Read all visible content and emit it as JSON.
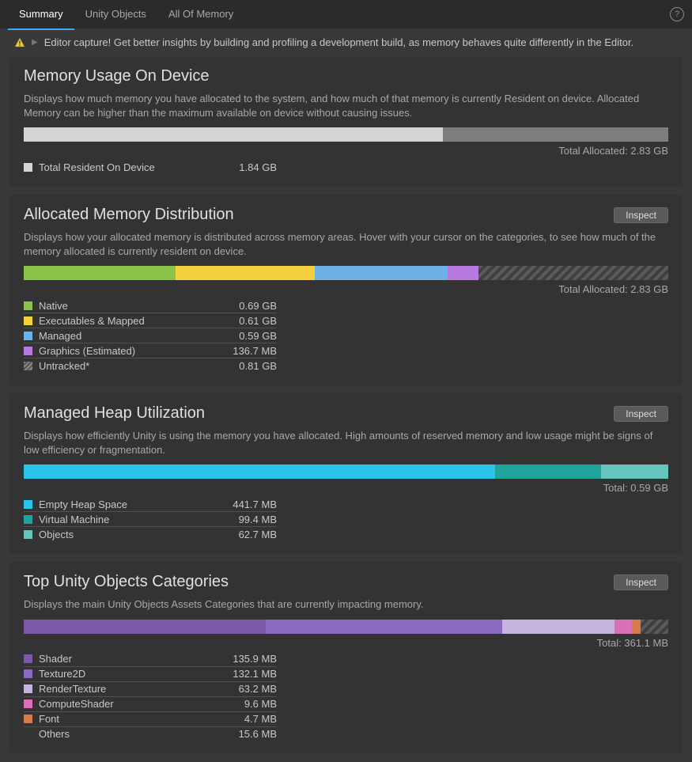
{
  "tabs": [
    {
      "label": "Summary",
      "active": true
    },
    {
      "label": "Unity Objects",
      "active": false
    },
    {
      "label": "All Of Memory",
      "active": false
    }
  ],
  "warning": "Editor capture! Get better insights by building and profiling a development build, as memory behaves quite differently in the Editor.",
  "inspect_label": "Inspect",
  "panels": {
    "device": {
      "title": "Memory Usage On Device",
      "desc": "Displays how much memory you have allocated to the system, and how much of that memory is currently Resident on device. Allocated Memory can be higher than the maximum available on device without causing issues.",
      "total_label": "Total Allocated: 2.83 GB",
      "bar": [
        {
          "color": "#d5d5d5",
          "pct": 65
        },
        {
          "color": "#7d7d7d",
          "pct": 35
        }
      ],
      "legend": [
        {
          "color": "#d5d5d5",
          "label": "Total Resident On Device",
          "val": "1.84 GB"
        }
      ]
    },
    "alloc": {
      "title": "Allocated Memory Distribution",
      "desc": "Displays how your allocated memory is distributed across memory areas. Hover with your cursor on the categories, to see how much of the memory allocated is currently resident on device.",
      "total_label": "Total Allocated: 2.83 GB",
      "bar": [
        {
          "color": "#8bc34a",
          "pct": 23.6
        },
        {
          "color": "#f4d03f",
          "pct": 21.5
        },
        {
          "color": "#6cb1e8",
          "pct": 20.7
        },
        {
          "color": "#b879e0",
          "pct": 4.7
        },
        {
          "hatched": true,
          "pct": 29.5
        }
      ],
      "legend": [
        {
          "color": "#8bc34a",
          "label": "Native",
          "val": "0.69 GB"
        },
        {
          "color": "#f4d03f",
          "label": "Executables & Mapped",
          "val": "0.61 GB"
        },
        {
          "color": "#6cb1e8",
          "label": "Managed",
          "val": "0.59 GB"
        },
        {
          "color": "#b879e0",
          "label": "Graphics (Estimated)",
          "val": "136.7 MB"
        },
        {
          "hatched": true,
          "label": "Untracked*",
          "val": "0.81 GB"
        }
      ]
    },
    "heap": {
      "title": "Managed Heap Utilization",
      "desc": "Displays how efficiently Unity is using the memory you have allocated. High amounts of reserved memory and low usage might be signs of low efficiency or fragmentation.",
      "total_label": "Total: 0.59 GB",
      "bar": [
        {
          "color": "#29c4e8",
          "pct": 73.1
        },
        {
          "color": "#1fa59b",
          "pct": 16.5
        },
        {
          "color": "#66c6bd",
          "pct": 10.4
        }
      ],
      "legend": [
        {
          "color": "#29c4e8",
          "label": "Empty Heap Space",
          "val": "441.7 MB"
        },
        {
          "color": "#1fa59b",
          "label": "Virtual Machine",
          "val": "99.4 MB"
        },
        {
          "color": "#66c6bd",
          "label": "Objects",
          "val": "62.7 MB"
        }
      ]
    },
    "objects": {
      "title": "Top Unity Objects Categories",
      "desc": "Displays the main Unity Objects Assets Categories that are currently impacting memory.",
      "total_label": "Total: 361.1 MB",
      "bar": [
        {
          "color": "#7b59a8",
          "pct": 37.6
        },
        {
          "color": "#8a6ac0",
          "pct": 36.6
        },
        {
          "color": "#c4b4de",
          "pct": 17.5
        },
        {
          "color": "#d86fb8",
          "pct": 2.7
        },
        {
          "color": "#d87a4a",
          "pct": 1.3
        },
        {
          "hatched": true,
          "pct": 4.3
        }
      ],
      "legend": [
        {
          "color": "#7b59a8",
          "label": "Shader",
          "val": "135.9 MB"
        },
        {
          "color": "#8a6ac0",
          "label": "Texture2D",
          "val": "132.1 MB"
        },
        {
          "color": "#c4b4de",
          "label": "RenderTexture",
          "val": "63.2 MB"
        },
        {
          "color": "#d86fb8",
          "label": "ComputeShader",
          "val": "9.6 MB"
        },
        {
          "color": "#d87a4a",
          "label": "Font",
          "val": "4.7 MB"
        },
        {
          "nocolor": true,
          "label": "Others",
          "val": "15.6 MB"
        }
      ]
    }
  }
}
